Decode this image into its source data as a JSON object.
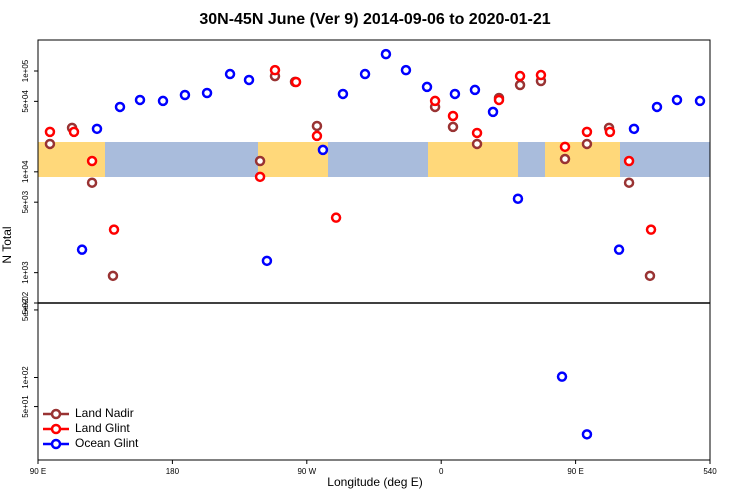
{
  "chart_data": [
    {
      "type": "scatter",
      "title": "30N-45N June (Ver 9)   2014-09-06 to 2020-01-21",
      "ylabel": "N Total",
      "log_y": true,
      "xlim": [
        90,
        540
      ],
      "ylim": [
        500,
        203000
      ],
      "yticks": [
        {
          "value": 500,
          "label": "5e+02"
        },
        {
          "value": 1000,
          "label": "1e+03"
        },
        {
          "value": 5000,
          "label": "5e+03"
        },
        {
          "value": 10000,
          "label": "1e+04"
        },
        {
          "value": 50000,
          "label": "5e+04"
        },
        {
          "value": 100000,
          "label": "1e+05"
        }
      ],
      "series": [
        {
          "color": "#993333",
          "x": [
            98.0,
            112.8,
            126.2,
            140.2,
            238.7,
            248.7,
            262.1,
            276.8,
            355.9,
            367.9,
            384.0,
            398.7,
            412.8,
            426.8,
            442.9,
            457.6,
            472.4,
            485.8,
            499.8
          ],
          "values": [
            18900,
            27300,
            7800,
            930,
            12800,
            89000,
            78000,
            28500,
            44000,
            27900,
            18900,
            54000,
            72600,
            79600,
            13400,
            18900,
            27300,
            7800,
            930
          ]
        },
        {
          "color": "#ff0000",
          "x": [
            98.0,
            114.1,
            126.2,
            140.9,
            238.7,
            248.7,
            262.8,
            276.8,
            289.6,
            355.9,
            367.9,
            384.0,
            398.7,
            412.8,
            426.8,
            442.9,
            457.6,
            473.0,
            485.8,
            500.5
          ],
          "values": [
            24900,
            24900,
            12800,
            2670,
            8920,
            102000,
            77800,
            22700,
            3510,
            50500,
            35800,
            24300,
            51600,
            89100,
            91200,
            17700,
            24900,
            24900,
            12800,
            2670
          ]
        },
        {
          "color": "#0000ff",
          "x": [
            119.5,
            129.5,
            144.9,
            158.3,
            173.7,
            188.4,
            203.2,
            218.6,
            231.3,
            243.3,
            280.8,
            294.2,
            309.0,
            323.0,
            336.4,
            350.5,
            369.2,
            382.6,
            394.7,
            411.4,
            479.1,
            489.1,
            504.5,
            517.9,
            533.3
          ],
          "values": [
            1690,
            26700,
            44000,
            51600,
            50500,
            57800,
            60500,
            93300,
            81500,
            1310,
            16500,
            59200,
            93300,
            147000,
            102000,
            69500,
            59200,
            64900,
            39300,
            5410,
            1690,
            26700,
            44000,
            51600,
            50500
          ]
        }
      ]
    },
    {
      "type": "scatter",
      "xlabel": "Longitude (deg E)",
      "log_y": true,
      "xlim": [
        90,
        540
      ],
      "ylim": [
        14,
        590
      ],
      "legend": "lower left",
      "xticks": [
        {
          "value": 90,
          "label": "90 E"
        },
        180,
        {
          "value": 270,
          "label": "90 W"
        },
        {
          "value": 360,
          "label": "0"
        },
        {
          "value": 450,
          "label": "90 E"
        },
        540
      ],
      "yticks": [
        {
          "value": 50,
          "label": "5e+01"
        },
        {
          "value": 100,
          "label": "1e+02"
        },
        {
          "value": 500,
          "label": "5e+02"
        }
      ],
      "series": [
        {
          "name": "Land Nadir",
          "color": "#993333",
          "x": [],
          "values": []
        },
        {
          "name": "Land Glint",
          "color": "#ff0000",
          "x": [],
          "values": []
        },
        {
          "name": "Ocean Glint",
          "color": "#0000ff",
          "x": [
            440.9,
            457.6
          ],
          "values": [
            102,
            25.8
          ]
        }
      ]
    }
  ]
}
